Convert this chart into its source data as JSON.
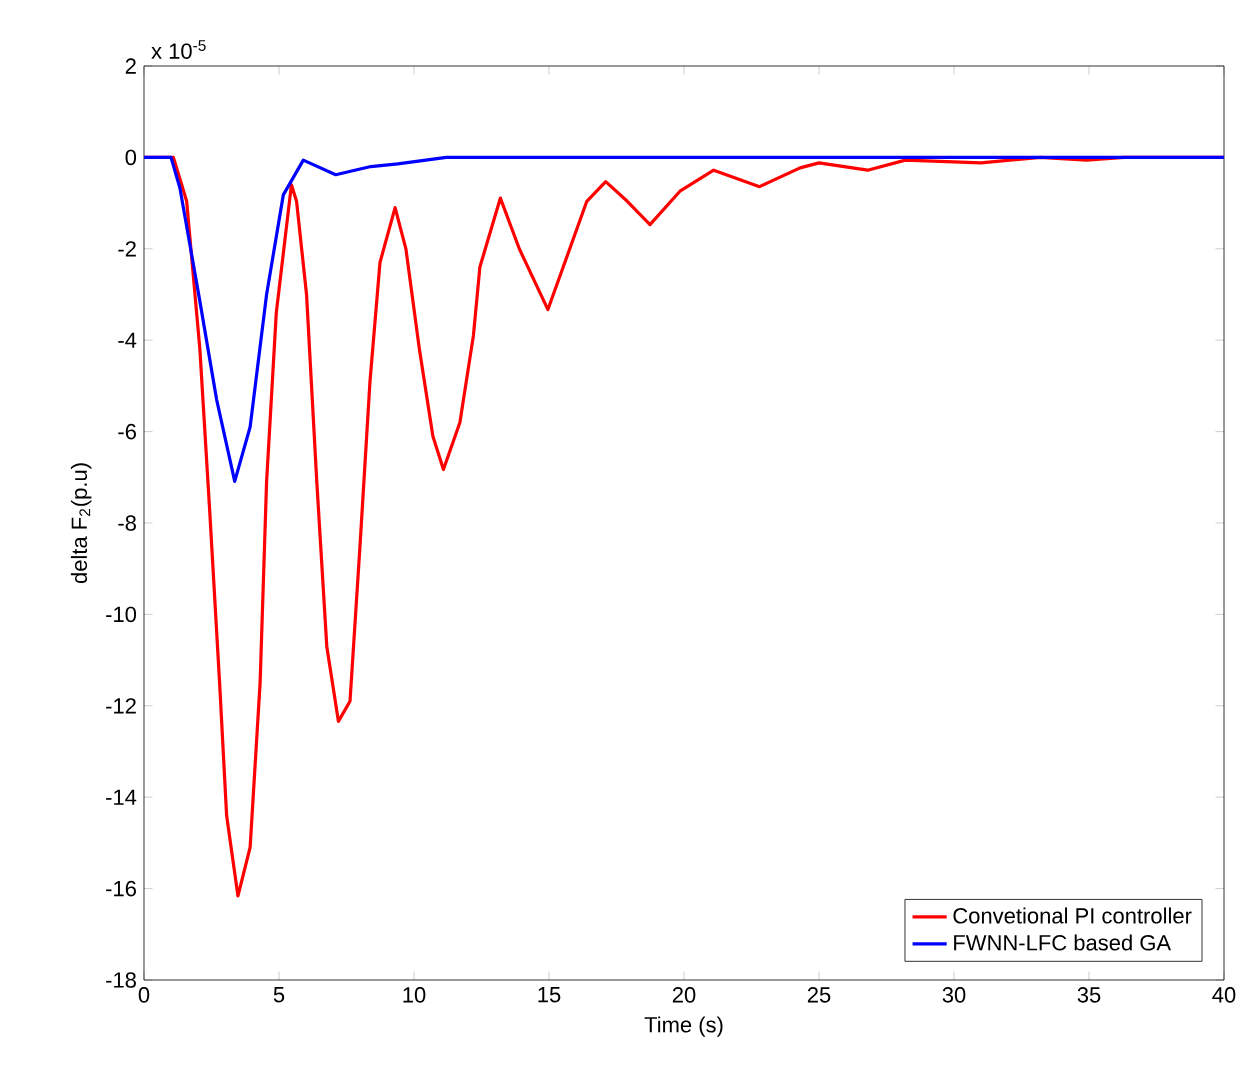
{
  "chart_data": {
    "type": "line",
    "xlabel": "Time (s)",
    "ylabel": "delta F$_{2}$(p.u)",
    "annotations": [
      "x 10$^{-5}$"
    ],
    "xlim": [
      0,
      40
    ],
    "ylim": [
      -18,
      2
    ],
    "xticks": [
      0,
      5,
      10,
      15,
      20,
      25,
      30,
      35,
      40
    ],
    "yticks": [
      -18,
      -16,
      -14,
      -12,
      -10,
      -8,
      -6,
      -4,
      -2,
      0,
      2
    ],
    "legend": "bottom right",
    "grid": false,
    "line_style": "solid",
    "marker": "none",
    "series": [
      {
        "name": "Convetional PI controller",
        "color": "#ff0000",
        "x": [
          0,
          1.09,
          1.58,
          2.07,
          2.44,
          2.8,
          3.06,
          3.48,
          3.93,
          4.3,
          4.54,
          4.9,
          5.46,
          5.65,
          6.02,
          6.4,
          6.77,
          7.2,
          7.63,
          8.0,
          8.37,
          8.74,
          9.3,
          9.7,
          10.2,
          10.7,
          11.09,
          11.7,
          12.2,
          12.44,
          13.2,
          13.9,
          14.96,
          16.4,
          17.1,
          17.9,
          18.74,
          19.85,
          21.1,
          22.8,
          24.3,
          25.0,
          26.8,
          28.2,
          31,
          33.2,
          34.9,
          36.3,
          40
        ],
        "values": [
          0,
          0,
          -0.96,
          -4.2,
          -7.8,
          -11.5,
          -14.4,
          -16.16,
          -15.1,
          -11.5,
          -7.1,
          -3.4,
          -0.6,
          -0.96,
          -3.0,
          -7.1,
          -10.7,
          -12.34,
          -11.9,
          -8.5,
          -4.9,
          -2.3,
          -1.1,
          -2.0,
          -4.2,
          -6.1,
          -6.83,
          -5.8,
          -3.9,
          -2.4,
          -0.89,
          -2.0,
          -3.33,
          -0.96,
          -0.53,
          -0.96,
          -1.47,
          -0.74,
          -0.28,
          -0.64,
          -0.23,
          -0.12,
          -0.28,
          -0.06,
          -0.12,
          0,
          -0.06,
          0,
          0
        ]
      },
      {
        "name": "FWNN-LFC based GA",
        "color": "#0000ff",
        "x": [
          0,
          1.0,
          1.33,
          2.07,
          2.69,
          3.36,
          3.93,
          4.54,
          5.16,
          5.9,
          7.1,
          8.4,
          9.4,
          11.2,
          40
        ],
        "values": [
          0,
          0,
          -0.67,
          -3.15,
          -5.3,
          -7.09,
          -5.9,
          -3.0,
          -0.82,
          -0.06,
          -0.38,
          -0.2,
          -0.14,
          0,
          0
        ]
      }
    ]
  }
}
